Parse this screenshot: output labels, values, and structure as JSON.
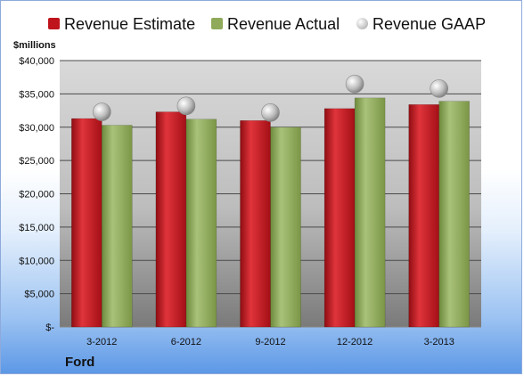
{
  "chart_data": {
    "type": "bar",
    "title": "",
    "ylabel": "$millions",
    "xlabel": "",
    "categories": [
      "3-2012",
      "6-2012",
      "9-2012",
      "12-2012",
      "3-2013"
    ],
    "series": [
      {
        "name": "Revenue Estimate",
        "kind": "bar",
        "color": "#c0141c",
        "values": [
          31300,
          32300,
          31000,
          32800,
          33400
        ]
      },
      {
        "name": "Revenue Actual",
        "kind": "bar",
        "color": "#8faa5a",
        "values": [
          30300,
          31200,
          30000,
          34400,
          33900
        ]
      },
      {
        "name": "Revenue GAAP",
        "kind": "marker",
        "color": "#b4b4b4",
        "values": [
          32300,
          33200,
          32200,
          36500,
          35800
        ]
      }
    ],
    "ylim": [
      0,
      40000
    ],
    "yticks": [
      0,
      5000,
      10000,
      15000,
      20000,
      25000,
      30000,
      35000,
      40000
    ],
    "ytick_labels": [
      "$-",
      "$5,000",
      "$10,000",
      "$15,000",
      "$20,000",
      "$25,000",
      "$30,000",
      "$35,000",
      "$40,000"
    ],
    "grid": true,
    "legend_position": "top",
    "footer_label": "Ford"
  }
}
